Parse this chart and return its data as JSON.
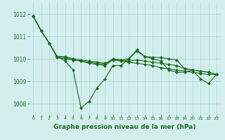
{
  "title": "Graphe pression niveau de la mer (hPa)",
  "background_color": "#d4eeee",
  "grid_color": "#a8d8cc",
  "line_color": "#1a6b1a",
  "xlim": [
    -0.5,
    23.5
  ],
  "ylim": [
    1007.5,
    1012.5
  ],
  "yticks": [
    1008,
    1009,
    1010,
    1011,
    1012
  ],
  "xtick_labels": [
    "0",
    "1",
    "2",
    "3",
    "4",
    "5",
    "6",
    "7",
    "8",
    "9",
    "10",
    "11",
    "12",
    "13",
    "14",
    "15",
    "16",
    "17",
    "18",
    "19",
    "20",
    "21",
    "22",
    "23"
  ],
  "series": [
    [
      1011.9,
      1011.25,
      1010.7,
      1010.1,
      1010.05,
      1009.95,
      1009.9,
      1009.8,
      1009.75,
      1009.7,
      1009.95,
      1009.9,
      1009.85,
      1009.8,
      1009.75,
      1009.7,
      1009.6,
      1009.55,
      1009.5,
      1009.45,
      1009.4,
      1009.35,
      1009.3,
      1009.3
    ],
    [
      1011.9,
      1011.25,
      1010.7,
      1010.1,
      1009.9,
      1009.5,
      1007.8,
      1008.1,
      1008.7,
      1009.1,
      1009.7,
      1009.7,
      1010.0,
      1010.4,
      1010.1,
      1010.0,
      1009.9,
      1009.5,
      1009.4,
      1009.4,
      1009.5,
      1009.1,
      1008.9,
      1009.3
    ],
    [
      1011.9,
      1011.25,
      1010.7,
      1010.1,
      1010.1,
      1010.0,
      1009.95,
      1009.9,
      1009.85,
      1009.8,
      1009.97,
      1009.95,
      1010.0,
      1010.35,
      1010.1,
      1010.07,
      1010.05,
      1010.0,
      1009.95,
      1009.55,
      1009.5,
      1009.45,
      1009.4,
      1009.3
    ],
    [
      1011.9,
      1011.25,
      1010.7,
      1010.05,
      1010.0,
      1009.95,
      1009.9,
      1009.85,
      1009.8,
      1009.75,
      1010.0,
      1009.95,
      1009.9,
      1009.95,
      1009.9,
      1009.85,
      1009.8,
      1009.75,
      1009.7,
      1009.55,
      1009.5,
      1009.45,
      1009.4,
      1009.3
    ]
  ],
  "marker": "D",
  "markersize": 2.0,
  "linewidth": 0.8,
  "title_fontsize": 6.5,
  "ytick_fontsize": 5.5,
  "xtick_fontsize": 4.5
}
